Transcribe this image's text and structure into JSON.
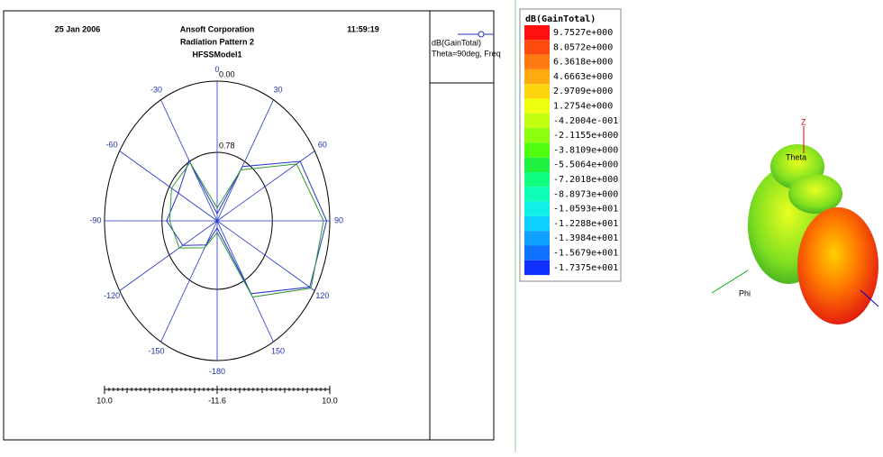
{
  "chart_data": {
    "type": "polar",
    "header": {
      "date": "25 Jan 2006",
      "company": "Ansoft Corporation",
      "title": "Radiation Pattern 2",
      "subtitle": "HFSSModel1",
      "time": "11:59:19"
    },
    "theta": [
      0,
      30,
      60,
      90,
      120,
      150,
      180,
      210,
      240,
      270,
      300,
      330
    ],
    "series": [
      {
        "name": "dB(GainTotal)",
        "color": "#2233cc",
        "values": [
          -10.5,
          -1.9,
          6.8,
          9.4,
          8.9,
          1.4,
          -10.5,
          -7.3,
          -4.0,
          -1.9,
          -3.0,
          -0.8
        ]
      },
      {
        "name": "Theta=90deg, Freq",
        "color": "#339933",
        "values": [
          -9.6,
          -2.5,
          6.0,
          8.8,
          9.2,
          2.0,
          -9.8,
          -6.8,
          -3.2,
          -2.5,
          -1.5,
          -1.2
        ]
      }
    ],
    "rlim": [
      -11.6,
      10.0
    ],
    "rticks": [
      {
        "value": 10.0,
        "label": "10.0"
      },
      {
        "value": -11.6,
        "label": "-11.6"
      },
      {
        "value": 10.0,
        "label": "10.0"
      }
    ],
    "ring_labels": [
      "0.00",
      "0.78"
    ],
    "thetaticks": [
      0,
      30,
      60,
      90,
      120,
      150,
      -180,
      -150,
      -120,
      -90,
      -60,
      -30
    ]
  },
  "colorbar": {
    "title": "dB(GainTotal)",
    "labels": [
      "9.7527e+000",
      "8.0572e+000",
      "6.3618e+000",
      "4.6663e+000",
      "2.9709e+000",
      "1.2754e+000",
      "-4.2004e-001",
      "-2.1155e+000",
      "-3.8109e+000",
      "-5.5064e+000",
      "-7.2018e+000",
      "-8.8973e+000",
      "-1.0593e+001",
      "-1.2288e+001",
      "-1.3984e+001",
      "-1.5679e+001",
      "-1.7375e+001"
    ],
    "colors": [
      "#ff1010",
      "#ff4a10",
      "#ff7a10",
      "#ffaa10",
      "#ffd510",
      "#eeff10",
      "#c0ff10",
      "#8cff10",
      "#50ff10",
      "#20f040",
      "#10ff80",
      "#10ffb8",
      "#10f0e8",
      "#10d0ff",
      "#10a0ff",
      "#1070ff",
      "#1030ff"
    ]
  },
  "view3d": {
    "z_label": "Z",
    "theta_label": "Theta",
    "phi_label": "Phi"
  }
}
